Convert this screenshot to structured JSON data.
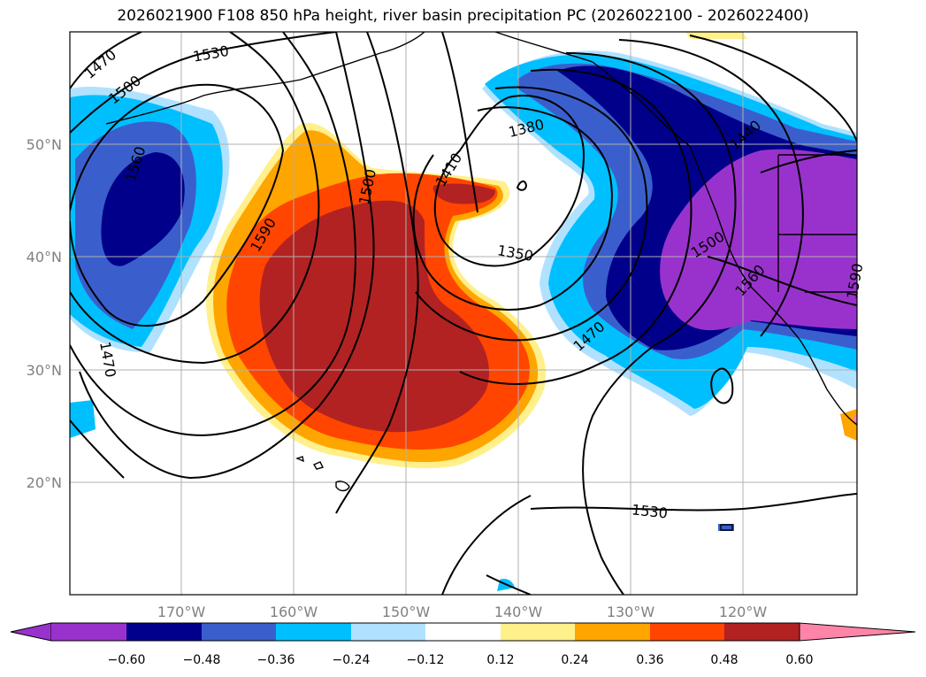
{
  "title": "2026021900 F108 850 hPa height, river basin precipitation PC (2026022100 - 2026022400)",
  "lat_labels": [
    "50°N",
    "40°N",
    "30°N",
    "20°N"
  ],
  "lon_labels": [
    "170°W",
    "160°W",
    "150°W",
    "140°W",
    "130°W",
    "120°W"
  ],
  "contour_labels": [
    "1470",
    "1500",
    "1530",
    "1560",
    "1590",
    "1500",
    "1410",
    "1380",
    "1350",
    "1470",
    "1440",
    "1500",
    "1560",
    "1590",
    "1470",
    "1530"
  ],
  "colorbar": {
    "colors": [
      "#9932cc",
      "#00008b",
      "#3a5fcd",
      "#00bfff",
      "#b0e2ff",
      "#ffffff",
      "#fff08c",
      "#ffa500",
      "#ff4500",
      "#b22222",
      "#ff85a8"
    ],
    "ticks": [
      "−0.60",
      "−0.48",
      "−0.36",
      "−0.24",
      "−0.12",
      "0.12",
      "0.24",
      "0.36",
      "0.48",
      "0.60"
    ]
  }
}
